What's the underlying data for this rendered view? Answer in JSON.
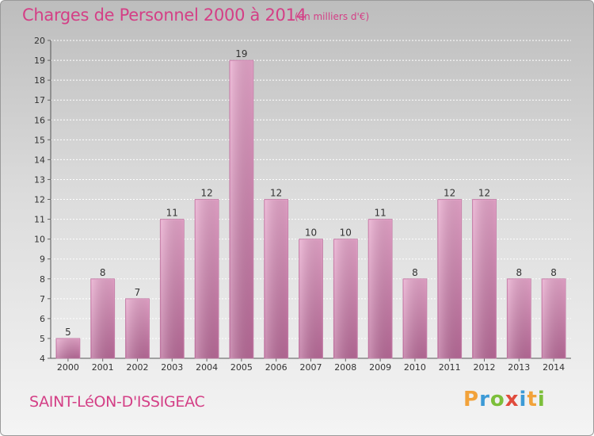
{
  "header": {
    "title": "Charges de Personnel 2000 à 2014",
    "subtitle": "(en milliers d'€)"
  },
  "footer": {
    "commune": "SAINT-LéON-D'ISSIGEAC",
    "logo": {
      "letters": [
        "P",
        "r",
        "o",
        "x",
        "i",
        "t",
        "i"
      ],
      "colors": [
        "#f2a23a",
        "#3c9ad6",
        "#7cbf3a",
        "#e04b3c",
        "#3c9ad6",
        "#f2a23a",
        "#7cbf3a"
      ]
    }
  },
  "colors": {
    "bar": "#d48bb4",
    "bar_dark": "#a85588",
    "title": "#d43f86"
  },
  "chart_data": {
    "type": "bar",
    "title": "Charges de Personnel 2000 à 2014",
    "subtitle": "(en milliers d'€)",
    "categories": [
      "2000",
      "2001",
      "2002",
      "2003",
      "2004",
      "2005",
      "2006",
      "2007",
      "2008",
      "2009",
      "2010",
      "2011",
      "2012",
      "2013",
      "2014"
    ],
    "values": [
      5,
      8,
      7,
      11,
      12,
      19,
      12,
      10,
      10,
      11,
      8,
      12,
      12,
      8,
      8
    ],
    "ylim": [
      4,
      20
    ],
    "yticks": [
      4,
      5,
      6,
      7,
      8,
      9,
      10,
      11,
      12,
      13,
      14,
      15,
      16,
      17,
      18,
      19,
      20
    ],
    "grid": true,
    "legend": "none"
  }
}
